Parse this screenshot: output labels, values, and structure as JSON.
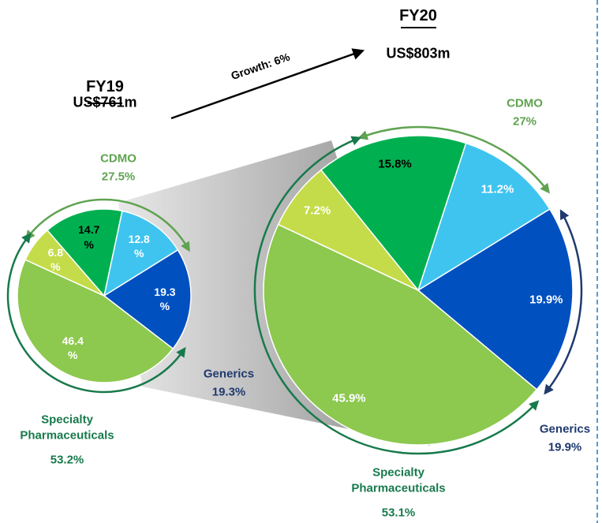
{
  "annotation": "Growth: 6%",
  "chart_data": [
    {
      "type": "pie",
      "title": "FY19",
      "subtitle": "US$761m",
      "values": [
        12.8,
        19.3,
        46.4,
        6.8,
        14.7
      ],
      "value_labels": [
        "12.8 %",
        "19.3 %",
        "46.4 %",
        "6.8 %",
        "14.7 %"
      ],
      "colors": [
        "#3fc4f0",
        "#0050c0",
        "#8dc84f",
        "#c5dc4a",
        "#00b050"
      ],
      "label_colors": [
        "#ffffff",
        "#ffffff",
        "#ffffff",
        "#ffffff",
        "#000000"
      ],
      "groups": [
        {
          "name": "CDMO",
          "value": 27.5,
          "label": "27.5%",
          "color": "#5fa350"
        },
        {
          "name": "Generics",
          "value": 19.3,
          "label": "19.3%",
          "color": "#1f3a6e"
        },
        {
          "name": "Specialty Pharmaceuticals",
          "value": 53.2,
          "label": "53.2%",
          "color": "#177a4c"
        }
      ]
    },
    {
      "type": "pie",
      "title": "FY20",
      "subtitle": "US$803m",
      "values": [
        11.2,
        19.9,
        45.9,
        7.2,
        15.8
      ],
      "value_labels": [
        "11.2%",
        "19.9%",
        "45.9%",
        "7.2%",
        "15.8%"
      ],
      "colors": [
        "#3fc4f0",
        "#0050c0",
        "#8dc84f",
        "#c5dc4a",
        "#00b050"
      ],
      "label_colors": [
        "#ffffff",
        "#ffffff",
        "#ffffff",
        "#ffffff",
        "#000000"
      ],
      "groups": [
        {
          "name": "CDMO",
          "value": 27,
          "label": "27%",
          "color": "#5fa350"
        },
        {
          "name": "Generics",
          "value": 19.9,
          "label": "19.9%",
          "color": "#1f3a6e"
        },
        {
          "name": "Specialty Pharmaceuticals",
          "value": 53.1,
          "label": "53.1%",
          "color": "#177a4c"
        }
      ]
    }
  ]
}
